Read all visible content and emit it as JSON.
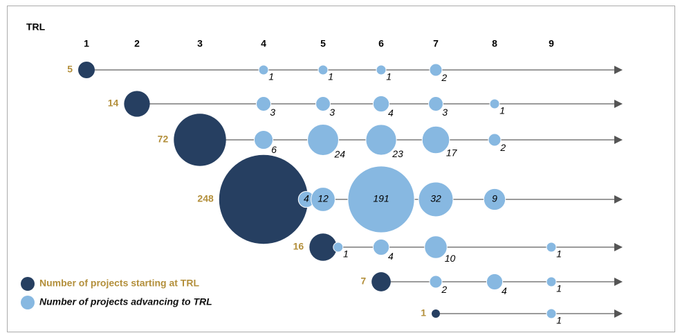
{
  "chart_data": {
    "type": "bubble",
    "axis_title": "TRL",
    "xticks": [
      1,
      2,
      3,
      4,
      5,
      6,
      7,
      8,
      9
    ],
    "start_color": "#263f61",
    "advance_color": "#87b8e1",
    "start_label_color": "#b38f3b",
    "legend": [
      {
        "name": "Number of projects starting at TRL",
        "color": "#263f61"
      },
      {
        "name": "Number of projects advancing to TRL",
        "color": "#87b8e1"
      }
    ],
    "legend_position": "lower left",
    "rows": [
      {
        "start": {
          "trl": 1,
          "count": 5
        },
        "advances": [
          {
            "trl": 4,
            "count": 1
          },
          {
            "trl": 5,
            "count": 1
          },
          {
            "trl": 6,
            "count": 1
          },
          {
            "trl": 7,
            "count": 2
          }
        ]
      },
      {
        "start": {
          "trl": 2,
          "count": 14
        },
        "advances": [
          {
            "trl": 4,
            "count": 3
          },
          {
            "trl": 5,
            "count": 3
          },
          {
            "trl": 6,
            "count": 4
          },
          {
            "trl": 7,
            "count": 3
          },
          {
            "trl": 8,
            "count": 1
          }
        ]
      },
      {
        "start": {
          "trl": 3,
          "count": 72
        },
        "advances": [
          {
            "trl": 4,
            "count": 6
          },
          {
            "trl": 5,
            "count": 24
          },
          {
            "trl": 6,
            "count": 23
          },
          {
            "trl": 7,
            "count": 17
          },
          {
            "trl": 8,
            "count": 2
          }
        ]
      },
      {
        "start": {
          "trl": 4,
          "count": 248
        },
        "advances": [
          {
            "trl": 4,
            "count": 4
          },
          {
            "trl": 5,
            "count": 12
          },
          {
            "trl": 6,
            "count": 191
          },
          {
            "trl": 7,
            "count": 32
          },
          {
            "trl": 8,
            "count": 9
          }
        ]
      },
      {
        "start": {
          "trl": 5,
          "count": 16
        },
        "advances": [
          {
            "trl": 5,
            "count": 1
          },
          {
            "trl": 6,
            "count": 4
          },
          {
            "trl": 7,
            "count": 10
          },
          {
            "trl": 9,
            "count": 1
          }
        ]
      },
      {
        "start": {
          "trl": 6,
          "count": 7
        },
        "advances": [
          {
            "trl": 7,
            "count": 2
          },
          {
            "trl": 8,
            "count": 4
          },
          {
            "trl": 9,
            "count": 1
          }
        ]
      },
      {
        "start": {
          "trl": 7,
          "count": 1
        },
        "advances": [
          {
            "trl": 9,
            "count": 1
          }
        ]
      }
    ]
  }
}
